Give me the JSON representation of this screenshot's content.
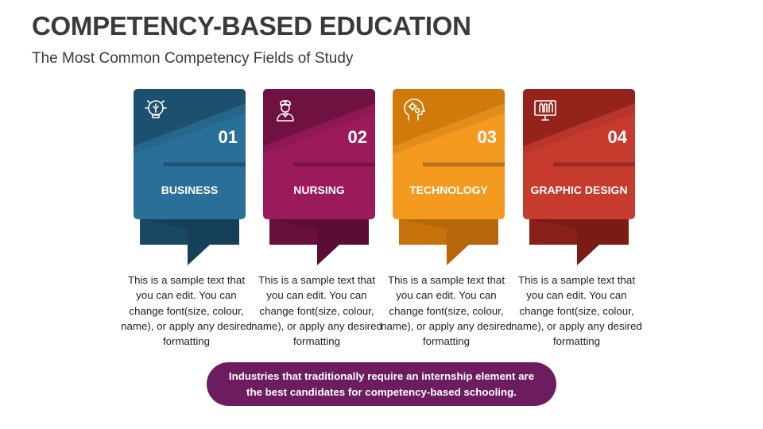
{
  "header": {
    "title": "COMPETENCY-BASED EDUCATION",
    "subtitle": "The Most Common Competency Fields of Study"
  },
  "cards": [
    {
      "number": "01",
      "label": "BUSINESS",
      "icon": "lightbulb-gears-icon",
      "color": "#2a6f97",
      "dark": "#1d4f6e",
      "tail": "#164059",
      "desc": "This is a sample text that you can edit. You can change font(size, colour, name), or apply any desired formatting"
    },
    {
      "number": "02",
      "label": "NURSING",
      "icon": "nurse-icon",
      "color": "#9b1b5a",
      "dark": "#6f1141",
      "tail": "#5c0d36",
      "desc": "This is a sample text that you can edit. You can change font(size, colour, name), or apply any desired formatting"
    },
    {
      "number": "03",
      "label": "TECHNOLOGY",
      "icon": "head-gears-icon",
      "color": "#f39a1f",
      "dark": "#d07a0c",
      "tail": "#b8660a",
      "desc": "This is a sample text that you can edit. You can change font(size, colour, name), or apply any desired formatting"
    },
    {
      "number": "04",
      "label": "GRAPHIC DESIGN",
      "icon": "monitor-tools-icon",
      "color": "#c73a2e",
      "dark": "#93231b",
      "tail": "#7a1c15",
      "desc": "This is a sample text that you can edit. You can change font(size, colour, name), or apply any desired formatting"
    }
  ],
  "footer": {
    "note": "Industries that traditionally require an internship element are the best candidates for competency-based schooling.",
    "color": "#6c1c5f"
  }
}
